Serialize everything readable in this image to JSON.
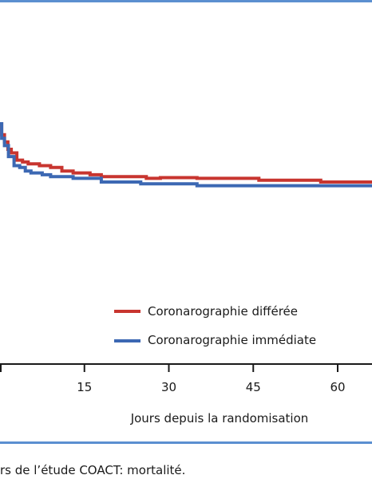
{
  "colors": {
    "frame": "#5b8fd0",
    "delayed": "#c8352f",
    "immediate": "#3c68b3",
    "axis": "#1a1a1a"
  },
  "caption": "rs de l’étude COACT: mortalité.",
  "chart_data": {
    "type": "line",
    "title": "",
    "xlabel": "Jours depuis la randomisation",
    "ylabel": "",
    "xlim": [
      -9,
      72
    ],
    "ylim": [
      0,
      1
    ],
    "x_ticks": [
      15,
      30,
      45,
      60
    ],
    "x_tick_labels": [
      "15",
      "30",
      "45",
      "60"
    ],
    "legend_position": "bottom-right",
    "series": [
      {
        "name": "Coronarographie différée",
        "color": "#c8352f",
        "step": true,
        "x": [
          -9,
          0.3,
          0.8,
          1.4,
          2.0,
          3.0,
          4.0,
          5.0,
          7.0,
          9.0,
          11.0,
          13.0,
          16.0,
          18.0,
          26.0,
          28.5,
          35.0,
          46.0,
          57.0,
          72
        ],
        "y": [
          0.66,
          0.63,
          0.61,
          0.59,
          0.58,
          0.56,
          0.555,
          0.55,
          0.545,
          0.54,
          0.53,
          0.525,
          0.52,
          0.515,
          0.51,
          0.512,
          0.51,
          0.505,
          0.5,
          0.5
        ]
      },
      {
        "name": "Coronarographie immédiate",
        "color": "#3c68b3",
        "step": true,
        "x": [
          -9,
          0.3,
          0.8,
          1.5,
          2.5,
          3.5,
          4.5,
          5.5,
          7.5,
          9.0,
          13.0,
          18.0,
          25.0,
          35.0,
          72
        ],
        "y": [
          0.66,
          0.62,
          0.6,
          0.57,
          0.545,
          0.54,
          0.53,
          0.525,
          0.52,
          0.515,
          0.51,
          0.5,
          0.495,
          0.49,
          0.49
        ]
      }
    ]
  }
}
